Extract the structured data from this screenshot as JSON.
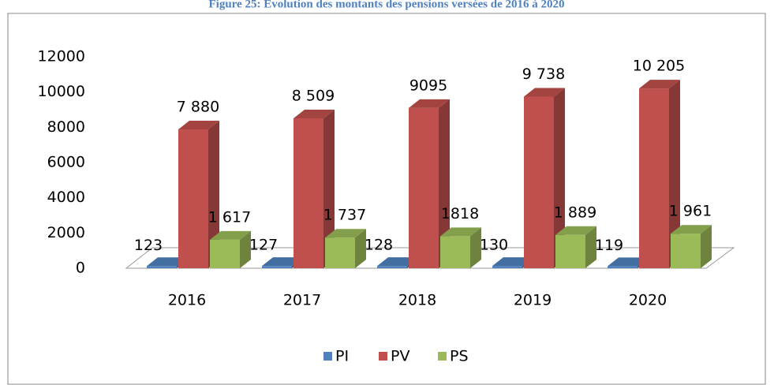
{
  "chart_data": {
    "type": "bar3d",
    "title": "Figure 25: Évolution des montants des pensions versées de 2016 à 2020",
    "categories": [
      "2016",
      "2017",
      "2018",
      "2019",
      "2020"
    ],
    "series": [
      {
        "name": "PI",
        "color": "#4f81bd",
        "values": [
          123,
          127,
          128,
          130,
          119
        ]
      },
      {
        "name": "PV",
        "color": "#c0504d",
        "values": [
          7880,
          8509,
          9095,
          9738,
          10205
        ],
        "value_labels": [
          "7 880",
          "8 509",
          "9095",
          "9 738",
          "10 205"
        ]
      },
      {
        "name": "PS",
        "color": "#9bbb59",
        "values": [
          1617,
          1737,
          1818,
          1889,
          1961
        ],
        "value_labels": [
          "1 617",
          "1 737",
          "1818",
          "1 889",
          "1 961"
        ]
      }
    ],
    "ylim": [
      0,
      12000
    ],
    "yticks": [
      0,
      2000,
      4000,
      6000,
      8000,
      10000,
      12000
    ],
    "legend": "bottom"
  }
}
